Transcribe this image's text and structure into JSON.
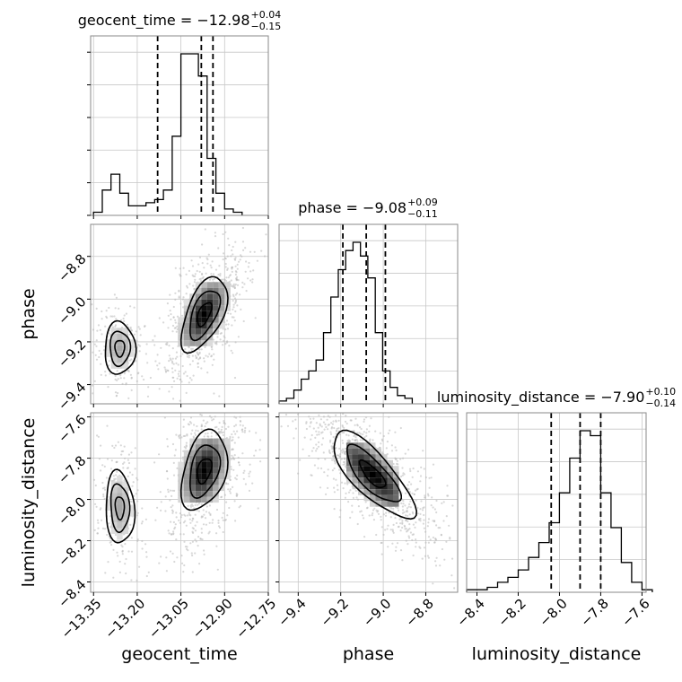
{
  "chart_data": {
    "type": "corner",
    "parameters": [
      "geocent_time",
      "phase",
      "luminosity_distance"
    ],
    "titles": [
      {
        "param": "geocent_time",
        "prefix": "geocent_time = −12.98",
        "sup": "+0.04",
        "sub": "−0.15"
      },
      {
        "param": "phase",
        "prefix": "phase = −9.08",
        "sup": "+0.09",
        "sub": "−0.11"
      },
      {
        "param": "luminosity_distance",
        "prefix": "luminosity_distance = −7.90",
        "sup": "+0.10",
        "sub": "−0.14"
      }
    ],
    "axis_labels": {
      "geocent_time": "geocent_time",
      "phase": "phase",
      "luminosity_distance": "luminosity_distance"
    },
    "ranges": {
      "geocent_time": [
        -13.36,
        -12.75
      ],
      "phase": [
        -9.49,
        -8.65
      ],
      "luminosity_distance": [
        -8.45,
        -7.58
      ]
    },
    "ticks": {
      "geocent_time": {
        "values": [
          -13.35,
          -13.2,
          -13.05,
          -12.9,
          -12.75
        ],
        "labels": [
          "−13.35",
          "−13.20",
          "−13.05",
          "−12.90",
          "−12.75"
        ]
      },
      "phase_y": {
        "values": [
          -8.8,
          -9.0,
          -9.2,
          -9.4
        ],
        "labels": [
          "−8.8",
          "−9.0",
          "−9.2",
          "−9.4"
        ]
      },
      "phase_x": {
        "values": [
          -9.4,
          -9.2,
          -9.0,
          -8.8
        ],
        "labels": [
          "−9.4",
          "−9.2",
          "−9.0",
          "−8.8"
        ]
      },
      "luminosity_distance_y": {
        "values": [
          -7.6,
          -7.8,
          -8.0,
          -8.2,
          -8.4
        ],
        "labels": [
          "−7.6",
          "−7.8",
          "−8.0",
          "−8.2",
          "−8.4"
        ]
      },
      "luminosity_distance_x": {
        "values": [
          -8.4,
          -8.2,
          -8.0,
          -7.8,
          -7.6
        ],
        "labels": [
          "−8.4",
          "−8.2",
          "−8.0",
          "−7.8",
          "−7.6"
        ]
      }
    },
    "quantiles": {
      "geocent_time": [
        -13.13,
        -12.98,
        -12.94
      ],
      "phase": [
        -9.19,
        -9.08,
        -8.99
      ],
      "luminosity_distance": [
        -8.04,
        -7.9,
        -7.8
      ]
    },
    "histograms": {
      "geocent_time": {
        "edges_start": -13.35,
        "bin_width": 0.03,
        "counts": [
          1,
          8,
          13,
          7,
          3,
          3,
          4,
          5,
          8,
          25,
          51,
          51,
          44,
          18,
          7,
          2,
          1
        ]
      },
      "phase": {
        "edges_start": -9.49,
        "bin_width": 0.0348,
        "counts": [
          1,
          2,
          5,
          9,
          12,
          16,
          26,
          39,
          49,
          56,
          59,
          54,
          46,
          26,
          12,
          6,
          3,
          2
        ]
      },
      "luminosity_distance": {
        "edges_start": -8.45,
        "bin_width": 0.05,
        "counts": [
          1,
          1,
          2,
          4,
          6,
          9,
          14,
          20,
          28,
          40,
          54,
          65,
          63,
          40,
          26,
          12,
          4,
          1
        ]
      }
    },
    "pairs": [
      {
        "x": "geocent_time",
        "y": "phase",
        "modes": [
          {
            "cx": -13.26,
            "cy": -9.23
          },
          {
            "cx": -12.97,
            "cy": -9.07
          }
        ]
      },
      {
        "x": "geocent_time",
        "y": "luminosity_distance",
        "modes": [
          {
            "cx": -13.26,
            "cy": -8.04
          },
          {
            "cx": -12.97,
            "cy": -7.86
          }
        ]
      },
      {
        "x": "phase",
        "y": "luminosity_distance",
        "modes": [
          {
            "cx": -9.05,
            "cy": -7.88
          }
        ]
      }
    ],
    "grid": true,
    "contour_levels": 3
  }
}
